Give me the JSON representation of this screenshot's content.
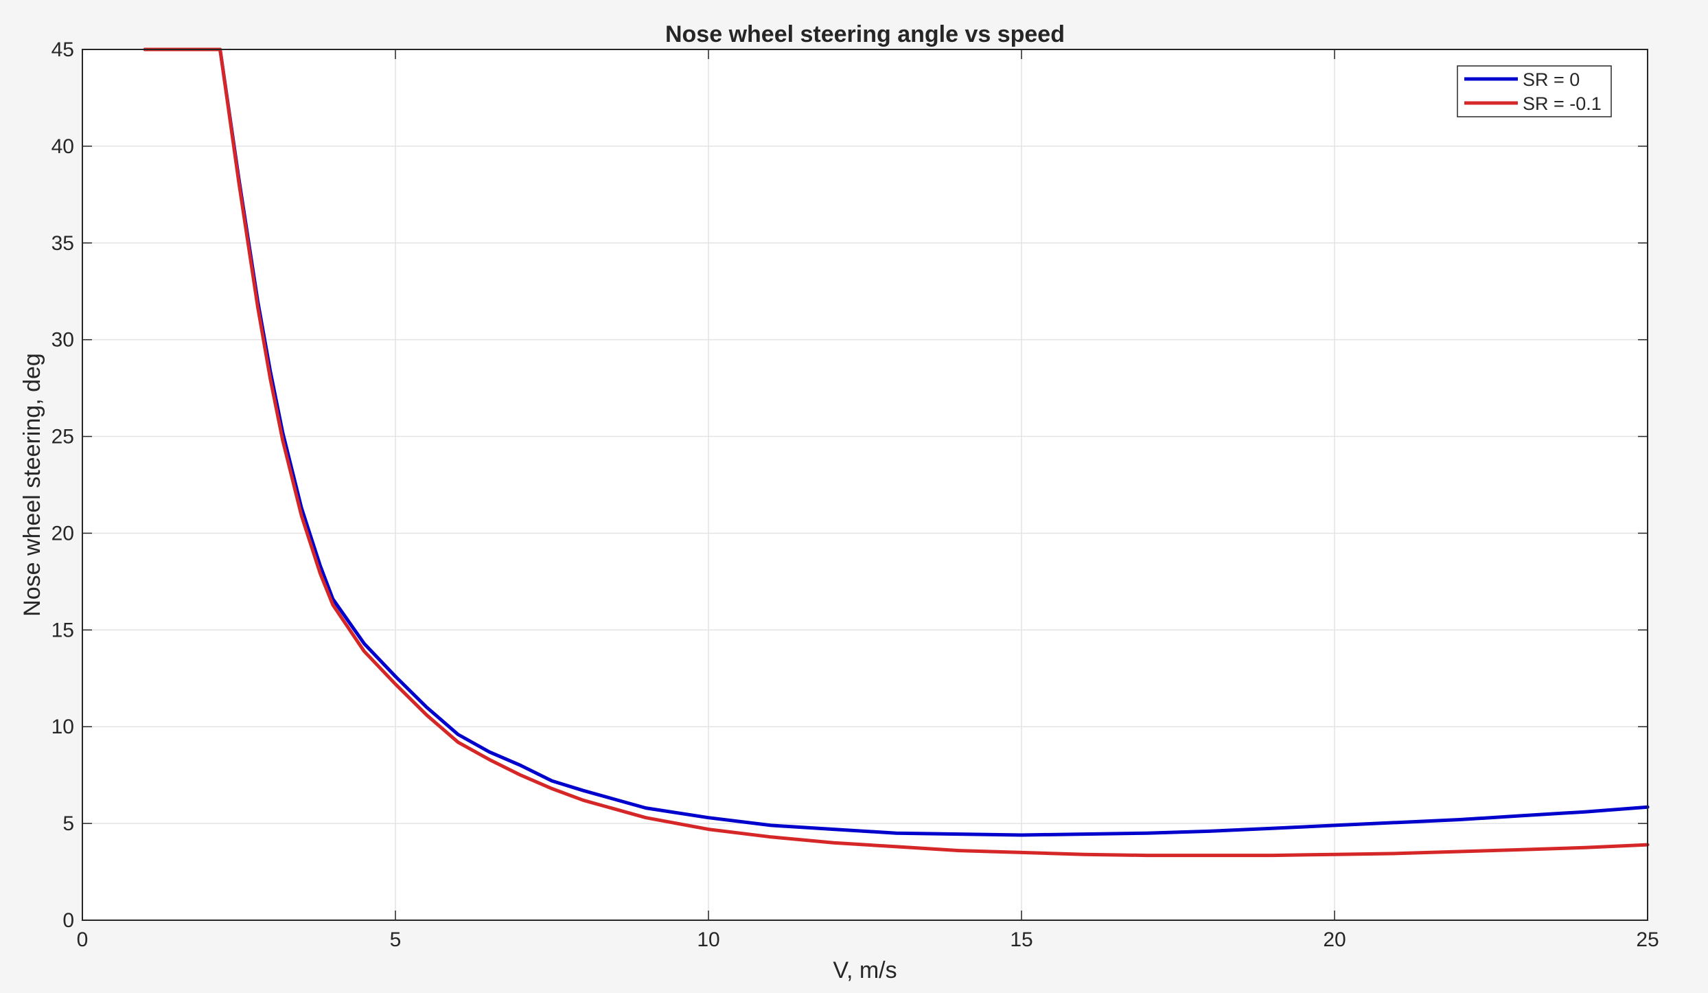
{
  "chart_data": {
    "type": "line",
    "title": "Nose wheel steering angle vs speed",
    "xlabel": "V, m/s",
    "ylabel": "Nose wheel steering, deg",
    "xlim": [
      0,
      25
    ],
    "ylim": [
      0,
      45
    ],
    "xticks": [
      0,
      5,
      10,
      15,
      20,
      25
    ],
    "yticks": [
      0,
      5,
      10,
      15,
      20,
      25,
      30,
      35,
      40,
      45
    ],
    "grid": true,
    "legend_position": "top-right",
    "series": [
      {
        "name": "SR = 0",
        "color": "#0000cc",
        "x": [
          1.0,
          2.2,
          2.5,
          2.8,
          3.0,
          3.2,
          3.5,
          3.8,
          4.0,
          4.5,
          5.0,
          5.5,
          6.0,
          6.5,
          7.0,
          7.5,
          8.0,
          9.0,
          10.0,
          11.0,
          12.0,
          13.0,
          14.0,
          15.0,
          16.0,
          17.0,
          18.0,
          19.0,
          20.0,
          21.0,
          22.0,
          23.0,
          24.0,
          25.0
        ],
        "y": [
          45.0,
          45.0,
          38.3,
          32.0,
          28.4,
          25.2,
          21.3,
          18.3,
          16.6,
          14.3,
          12.6,
          11.0,
          9.6,
          8.7,
          8.0,
          7.2,
          6.7,
          5.8,
          5.3,
          4.9,
          4.7,
          4.5,
          4.45,
          4.4,
          4.45,
          4.5,
          4.6,
          4.75,
          4.9,
          5.05,
          5.2,
          5.4,
          5.6,
          5.85
        ]
      },
      {
        "name": "SR = -0.1",
        "color": "#d62728",
        "x": [
          1.0,
          2.2,
          2.5,
          2.8,
          3.0,
          3.2,
          3.5,
          3.8,
          4.0,
          4.5,
          5.0,
          5.5,
          6.0,
          6.5,
          7.0,
          7.5,
          8.0,
          9.0,
          10.0,
          11.0,
          12.0,
          13.0,
          14.0,
          15.0,
          16.0,
          17.0,
          18.0,
          19.0,
          20.0,
          21.0,
          22.0,
          23.0,
          24.0,
          25.0
        ],
        "y": [
          45.0,
          45.0,
          38.1,
          31.7,
          28.0,
          24.8,
          20.9,
          17.9,
          16.3,
          13.9,
          12.2,
          10.6,
          9.2,
          8.3,
          7.5,
          6.8,
          6.2,
          5.3,
          4.7,
          4.3,
          4.0,
          3.8,
          3.6,
          3.5,
          3.4,
          3.35,
          3.35,
          3.35,
          3.4,
          3.45,
          3.55,
          3.65,
          3.75,
          3.9
        ]
      }
    ]
  }
}
